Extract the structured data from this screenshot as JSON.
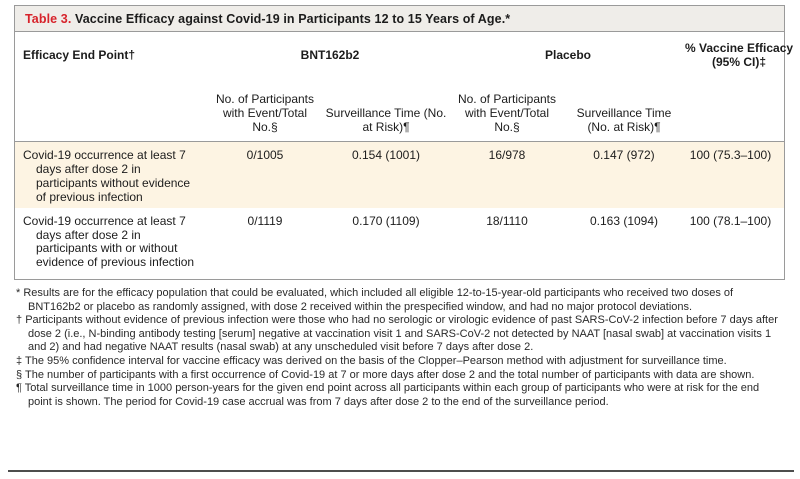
{
  "title": {
    "label": "Table 3.",
    "text": "Vaccine Efficacy against Covid-19 in Participants 12 to 15 Years of Age.*"
  },
  "table": {
    "endpoint_header": "Efficacy End Point†",
    "group_bnt": "BNT162b2",
    "group_placebo": "Placebo",
    "efficacy_header_line1": "% Vaccine Efficacy",
    "efficacy_header_line2": "(95% CI)‡",
    "subheader_events": "No. of Participants with Event/Total No.§",
    "subheader_surveillance": "Surveillance Time (No. at Risk)¶",
    "rows": [
      {
        "endpoint": "Covid-19 occurrence at least 7 days after dose 2 in participants without evidence of previous infection",
        "bnt_events": "0/1005",
        "bnt_surveillance": "0.154 (1001)",
        "placebo_events": "16/978",
        "placebo_surveillance": "0.147 (972)",
        "efficacy": "100 (75.3–100)"
      },
      {
        "endpoint": "Covid-19 occurrence at least 7 days after dose 2 in participants with or without evidence of previous infection",
        "bnt_events": "0/1119",
        "bnt_surveillance": "0.170 (1109)",
        "placebo_events": "18/1110",
        "placebo_surveillance": "0.163 (1094)",
        "efficacy": "100 (78.1–100)"
      }
    ]
  },
  "footnotes": [
    {
      "symbol": "*",
      "text": "Results are for the efficacy population that could be evaluated, which included all eligible 12-to-15-year-old participants who received two doses of BNT162b2 or placebo as randomly assigned, with dose 2 received within the prespecified window, and had no major protocol deviations."
    },
    {
      "symbol": "†",
      "text": "Participants without evidence of previous infection were those who had no serologic or virologic evidence of past SARS-CoV-2 infection before 7 days after dose 2 (i.e., N-binding antibody testing [serum] negative at vaccination visit 1 and SARS-CoV-2 not detected by NAAT [nasal swab] at vaccination visits 1 and 2) and had negative NAAT results (nasal swab) at any unscheduled visit before 7 days after dose 2."
    },
    {
      "symbol": "‡",
      "text": "The 95% confidence interval for vaccine efficacy was derived on the basis of the Clopper–Pearson method with adjustment for surveillance time."
    },
    {
      "symbol": "§",
      "text": "The number of participants with a first occurrence of Covid-19 at 7 or more days after dose 2 and the total number of participants with data are shown."
    },
    {
      "symbol": "¶",
      "text": "Total surveillance time in 1000 person-years for the given end point across all participants within each group of participants who were at risk for the end point is shown. The period for Covid-19 case accrual was from 7 days after dose 2 to the end of the surveillance period."
    }
  ],
  "colors": {
    "accent_red": "#d7232b",
    "title_bar_bg": "#efede9",
    "row_highlight_bg": "#fdf4e3",
    "border": "#9a9a9a"
  }
}
